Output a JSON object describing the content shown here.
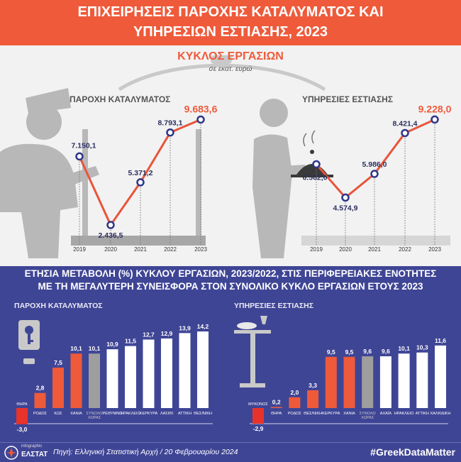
{
  "header": {
    "title_line1": "ΕΠΙΧΕΙΡΗΣΕΙΣ ΠΑΡΟΧΗΣ ΚΑΤΑΛΥΜΑΤΟΣ ΚΑΙ",
    "title_line2": "ΥΠΗΡΕΣΙΩΝ ΕΣΤΙΑΣΗΣ, 2023"
  },
  "turnover": {
    "title": "ΚΥΚΛΟΣ ΕΡΓΑΣΙΩΝ",
    "subtitle": "σε εκατ. ευρώ"
  },
  "second_section": {
    "title_line1": "ΕΤΗΣΙΑ ΜΕΤΑΒΟΛΗ (%) ΚΥΚΛΟΥ ΕΡΓΑΣΙΩΝ, 2023/2022, ΣΤΙΣ ΠΕΡΙΦΕΡΕΙΑΚΕΣ ΕΝΟΤΗΤΕΣ",
    "title_line2": "ΜΕ ΤΗ ΜΕΓΑΛΥΤΕΡΗ ΣΥΝΕΙΣΦΟΡΑ ΣΤΟΝ ΣΥΝΟΛΙΚΟ ΚΥΚΛΟ ΕΡΓΑΣΙΩΝ ΕΤΟΥΣ 2023"
  },
  "footer": {
    "brand_small": "infographic",
    "brand": "ΕΛΣΤΑΤ",
    "source": "Πηγή: Ελληνική Στατιστική Αρχή  / 20 Φεβρουαρίου 2024",
    "hashtag": "#GreekDataMatter"
  },
  "colors": {
    "accent": "#ee5a3a",
    "navy": "#3f4595",
    "line_orange": "#e8553a",
    "marker": "#2f3687",
    "neg_red": "#e8332a",
    "gray": "#9e9e9e"
  },
  "chart_data": [
    {
      "type": "line",
      "title": "ΠΑΡΟΧΗ ΚΑΤΑΛΥΜΑΤΟΣ",
      "x": [
        "2019",
        "2020",
        "2021",
        "2022",
        "2023"
      ],
      "values": [
        7150.1,
        2436.5,
        5371.2,
        8793.1,
        9683.6
      ],
      "labels": [
        "7.150,1",
        "2.436,5",
        "5.371,2",
        "8.793,1",
        "9.683,6"
      ],
      "unit": "σε εκατ. ευρώ"
    },
    {
      "type": "line",
      "title": "ΥΠΗΡΕΣΙΕΣ ΕΣΤΙΑΣΗΣ",
      "x": [
        "2019",
        "2020",
        "2021",
        "2022",
        "2023"
      ],
      "values": [
        6562.0,
        4574.9,
        5986.0,
        8421.4,
        9228.0
      ],
      "labels": [
        "6.562,0",
        "4.574,9",
        "5.986,0",
        "8.421,4",
        "9.228,0"
      ],
      "unit": "σε εκατ. ευρώ"
    },
    {
      "type": "bar",
      "title": "ΠΑΡΟΧΗ ΚΑΤΑΛΥΜΑΤΟΣ",
      "categories": [
        "ΘΗΡΑ",
        "ΡΟΔΟΣ",
        "ΚΩΣ",
        "ΧΑΝΙΑ",
        "ΣΥΝΟΛΟ ΧΩΡΑΣ",
        "ΡΕΘΥΜΝΟ",
        "ΗΡΑΚΛΕΙΟ",
        "ΚΕΡΚΥΡΑ",
        "ΛΑΣΙΘΙ",
        "ΑΤΤΙΚΗ",
        "ΘΕΣ/ΝΙΚΗ"
      ],
      "values": [
        -3.0,
        2.8,
        7.5,
        10.1,
        10.1,
        10.9,
        11.5,
        12.7,
        12.9,
        13.9,
        14.2
      ],
      "labels": [
        "-3,0",
        "2,8",
        "7,5",
        "10,1",
        "10,1",
        "10,9",
        "11,5",
        "12,7",
        "12,9",
        "13,9",
        "14,2"
      ],
      "total_index": 4
    },
    {
      "type": "bar",
      "title": "ΥΠΗΡΕΣΙΕΣ ΕΣΤΙΑΣΗΣ",
      "categories": [
        "ΜΥΚΟΝΟΣ",
        "ΘΗΡΑ",
        "ΡΟΔΟΣ",
        "ΘΕΣ/ΝΙΚΗ",
        "ΚΕΡΚΥΡΑ",
        "ΧΑΝΙΑ",
        "ΣΥΝΟΛΟ ΧΩΡΑΣ",
        "ΑΧΑΪΑ",
        "ΗΡΑΚΛΕΙΟ",
        "ΑΤΤΙΚΗ",
        "ΧΑΛΚΙΔΙΚΗ"
      ],
      "values": [
        -2.9,
        0.2,
        2.0,
        3.3,
        9.5,
        9.5,
        9.6,
        9.6,
        10.1,
        10.3,
        11.6
      ],
      "labels": [
        "-2,9",
        "0,2",
        "2,0",
        "3,3",
        "9,5",
        "9,5",
        "9,6",
        "9,6",
        "10,1",
        "10,3",
        "11,6"
      ],
      "total_index": 6
    }
  ]
}
